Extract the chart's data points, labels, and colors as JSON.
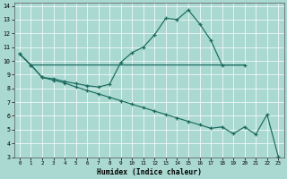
{
  "xlabel": "Humidex (Indice chaleur)",
  "background_color": "#aad9d1",
  "grid_color": "#c8e8e4",
  "line_color": "#1a6b5e",
  "xlim": [
    -0.5,
    23.5
  ],
  "ylim": [
    3,
    14.2
  ],
  "xticks": [
    0,
    1,
    2,
    3,
    4,
    5,
    6,
    7,
    8,
    9,
    10,
    11,
    12,
    13,
    14,
    15,
    16,
    17,
    18,
    19,
    20,
    21,
    22,
    23
  ],
  "yticks": [
    3,
    4,
    5,
    6,
    7,
    8,
    9,
    10,
    11,
    12,
    13,
    14
  ],
  "line1_x": [
    0,
    1,
    2,
    3,
    4,
    5,
    6,
    7,
    8,
    9,
    10,
    11,
    12,
    13,
    14,
    15,
    16,
    17,
    18,
    20
  ],
  "line1_y": [
    10.5,
    9.7,
    8.8,
    8.7,
    8.5,
    8.35,
    8.2,
    8.1,
    8.3,
    9.9,
    10.6,
    11.0,
    11.9,
    13.1,
    13.0,
    13.7,
    12.7,
    11.5,
    9.7,
    9.7
  ],
  "line2_x": [
    0,
    1,
    2,
    3,
    4,
    5,
    6,
    7,
    8,
    9,
    10,
    11,
    12,
    13,
    14,
    15,
    16,
    17,
    18,
    19,
    20
  ],
  "line2_y": [
    10.5,
    9.7,
    9.7,
    9.7,
    9.7,
    9.7,
    9.7,
    9.7,
    9.7,
    9.7,
    9.7,
    9.7,
    9.7,
    9.7,
    9.7,
    9.7,
    9.7,
    9.7,
    9.7,
    9.7,
    9.7
  ],
  "line3_x": [
    0,
    1,
    2,
    3,
    4,
    5,
    6,
    7,
    8,
    9,
    10,
    11,
    12,
    13,
    14,
    15,
    16,
    17,
    18,
    19,
    20,
    21,
    22,
    23
  ],
  "line3_y": [
    10.5,
    9.7,
    8.8,
    8.6,
    8.4,
    8.1,
    7.85,
    7.6,
    7.35,
    7.1,
    6.85,
    6.6,
    6.35,
    6.1,
    5.85,
    5.6,
    5.35,
    5.1,
    5.2,
    4.7,
    5.2,
    4.65,
    6.1,
    3.05
  ]
}
